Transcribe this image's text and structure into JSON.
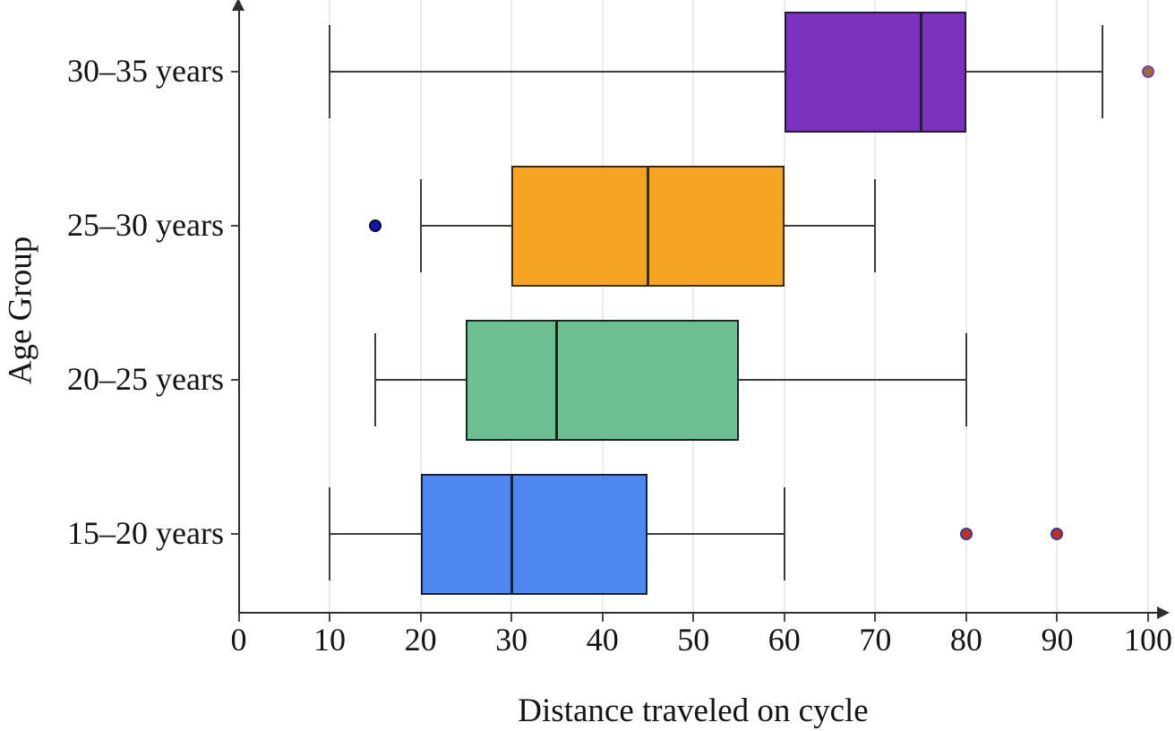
{
  "chart_data": {
    "type": "boxplot",
    "orientation": "horizontal",
    "title": "",
    "xlabel": "Distance traveled on cycle",
    "ylabel": "Age Group",
    "xlim": [
      0,
      100
    ],
    "xticks": [
      0,
      10,
      20,
      30,
      40,
      50,
      60,
      70,
      80,
      90,
      100
    ],
    "grid": "vertical-light",
    "rows": [
      {
        "label": "30–35 years",
        "whisker_low": 10,
        "q1": 60,
        "median": 75,
        "q3": 80,
        "whisker_high": 95,
        "box_color": "#7D2FBF",
        "edge_color": "#221A36",
        "outliers": [
          {
            "value": 100,
            "fill": "#9A6A3A",
            "edge": "#7A3FA8"
          }
        ]
      },
      {
        "label": "25–30 years",
        "whisker_low": 20,
        "q1": 30,
        "median": 45,
        "q3": 60,
        "whisker_high": 70,
        "box_color": "#F5A522",
        "edge_color": "#3D2B08",
        "outliers": [
          {
            "value": 15,
            "fill": "#1717A8",
            "edge": "#0A0A33"
          }
        ]
      },
      {
        "label": "20–25 years",
        "whisker_low": 15,
        "q1": 25,
        "median": 35,
        "q3": 55,
        "whisker_high": 80,
        "box_color": "#6CBF90",
        "edge_color": "#16281C",
        "outliers": []
      },
      {
        "label": "15–20 years",
        "whisker_low": 10,
        "q1": 20,
        "median": 30,
        "q3": 45,
        "whisker_high": 60,
        "box_color": "#4E86F0",
        "edge_color": "#131F3C",
        "outliers": [
          {
            "value": 80,
            "fill": "#BE3028",
            "edge": "#3A3A8C"
          },
          {
            "value": 90,
            "fill": "#BE3028",
            "edge": "#3A3A8C"
          }
        ]
      }
    ]
  }
}
